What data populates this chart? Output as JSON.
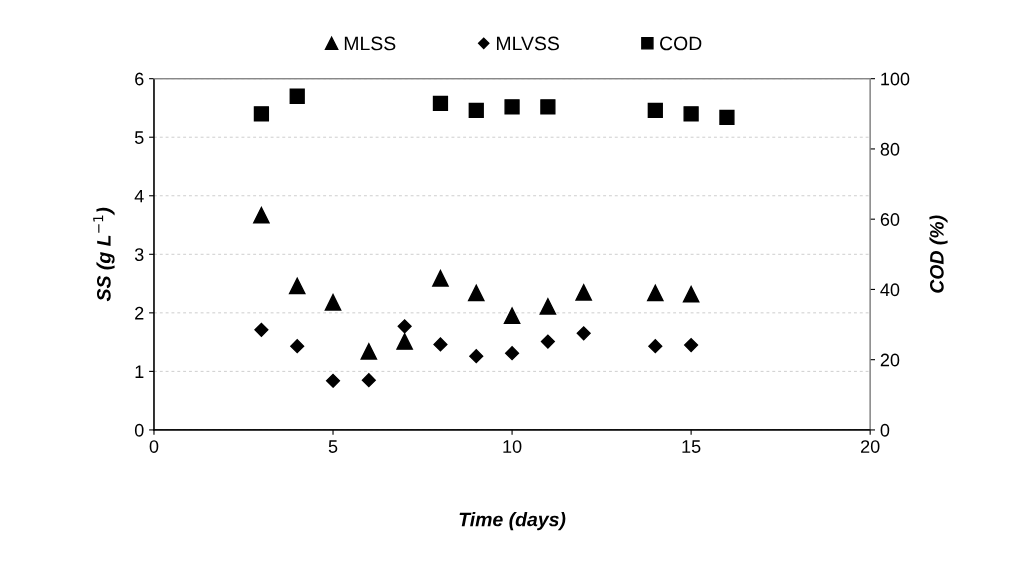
{
  "chart_data": {
    "type": "scatter",
    "xlabel": "Time (days)",
    "ylabel": "SS (g L$^{−1}$)",
    "y2label": "COD (%)",
    "xlim": [
      0,
      20
    ],
    "xticks": [
      0,
      5,
      10,
      15,
      20
    ],
    "ylim": [
      0,
      6
    ],
    "yticks": [
      0,
      1,
      2,
      3,
      4,
      5,
      6
    ],
    "y2lim": [
      0,
      100
    ],
    "y2ticks": [
      0,
      20,
      40,
      60,
      80,
      100
    ],
    "grid": "y",
    "legend": "top",
    "series": [
      {
        "name": "MLSS",
        "color": "#000000",
        "marker": "triangle",
        "x": [
          3,
          4,
          5,
          6,
          7,
          8,
          9,
          10,
          11,
          12,
          14,
          15
        ],
        "values": [
          3.67,
          2.46,
          2.18,
          1.34,
          1.51,
          2.59,
          2.34,
          1.95,
          2.11,
          2.35,
          2.34,
          2.32
        ]
      },
      {
        "name": "MLVSS",
        "color": "#000000",
        "marker": "diamond",
        "x": [
          3,
          4,
          5,
          6,
          7,
          8,
          9,
          10,
          11,
          12,
          14,
          15
        ],
        "values": [
          1.71,
          1.43,
          0.84,
          0.85,
          1.77,
          1.46,
          1.26,
          1.31,
          1.51,
          1.65,
          1.43,
          1.45
        ]
      },
      {
        "name": "COD",
        "color": "#000000",
        "marker": "square",
        "axis": "y2",
        "x": [
          3,
          4,
          8,
          9,
          10,
          11,
          14,
          15,
          16
        ],
        "values": [
          90,
          95,
          93,
          91,
          92,
          92,
          91,
          90,
          89
        ]
      }
    ]
  }
}
